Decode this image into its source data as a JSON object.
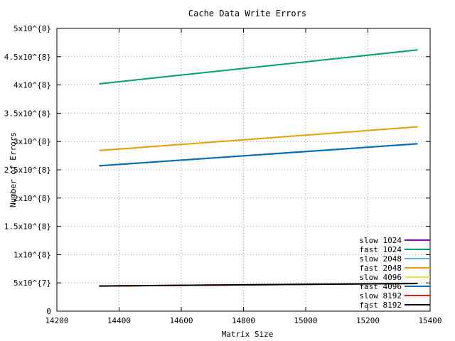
{
  "chart_data": {
    "type": "line",
    "title": "Cache Data Write Errors",
    "xlabel": "Matrix Size",
    "ylabel": "Number of Errors",
    "xlim": [
      14200,
      15400
    ],
    "ylim": [
      0,
      500000000
    ],
    "x_ticks": [
      14200,
      14400,
      14600,
      14800,
      15000,
      15200,
      15400
    ],
    "x_tick_labels": [
      "14200",
      "14400",
      "14600",
      "14800",
      "15000",
      "15200",
      "15400"
    ],
    "y_ticks": [
      0,
      50000000,
      100000000,
      150000000,
      200000000,
      250000000,
      300000000,
      350000000,
      400000000,
      450000000,
      500000000
    ],
    "y_tick_labels": [
      "0",
      "5x10^{7}",
      "1x10^{8}",
      "1.5x10^{8}",
      "2x10^{8}",
      "2.5x10^{8}",
      "3x10^{8}",
      "3.5x10^{8}",
      "4x10^{8}",
      "4.5x10^{8}",
      "5x10^{8}"
    ],
    "grid": true,
    "legend_position": "bottom-right",
    "series": [
      {
        "name": "slow 1024",
        "color": "#9400d3",
        "x": [
          14336,
          15360
        ],
        "y": [
          257000000,
          296000000
        ]
      },
      {
        "name": "fast 1024",
        "color": "#009e73",
        "x": [
          14336,
          15360
        ],
        "y": [
          402000000,
          462000000
        ]
      },
      {
        "name": "slow 2048",
        "color": "#56b4e9",
        "x": [
          14336,
          15360
        ],
        "y": [
          257000000,
          296000000
        ]
      },
      {
        "name": "fast 2048",
        "color": "#e69f00",
        "x": [
          14336,
          15360
        ],
        "y": [
          284000000,
          326000000
        ]
      },
      {
        "name": "slow 4096",
        "color": "#f0e442",
        "x": [
          14336,
          15360
        ],
        "y": [
          44500000,
          49000000
        ]
      },
      {
        "name": "fast 4096",
        "color": "#0072b2",
        "x": [
          14336,
          15360
        ],
        "y": [
          257000000,
          296000000
        ]
      },
      {
        "name": "slow 8192",
        "color": "#e51e10",
        "x": [
          14336,
          15360
        ],
        "y": [
          44500000,
          49000000
        ]
      },
      {
        "name": "fast 8192",
        "color": "#000000",
        "x": [
          14336,
          15360
        ],
        "y": [
          44500000,
          49000000
        ]
      }
    ]
  }
}
